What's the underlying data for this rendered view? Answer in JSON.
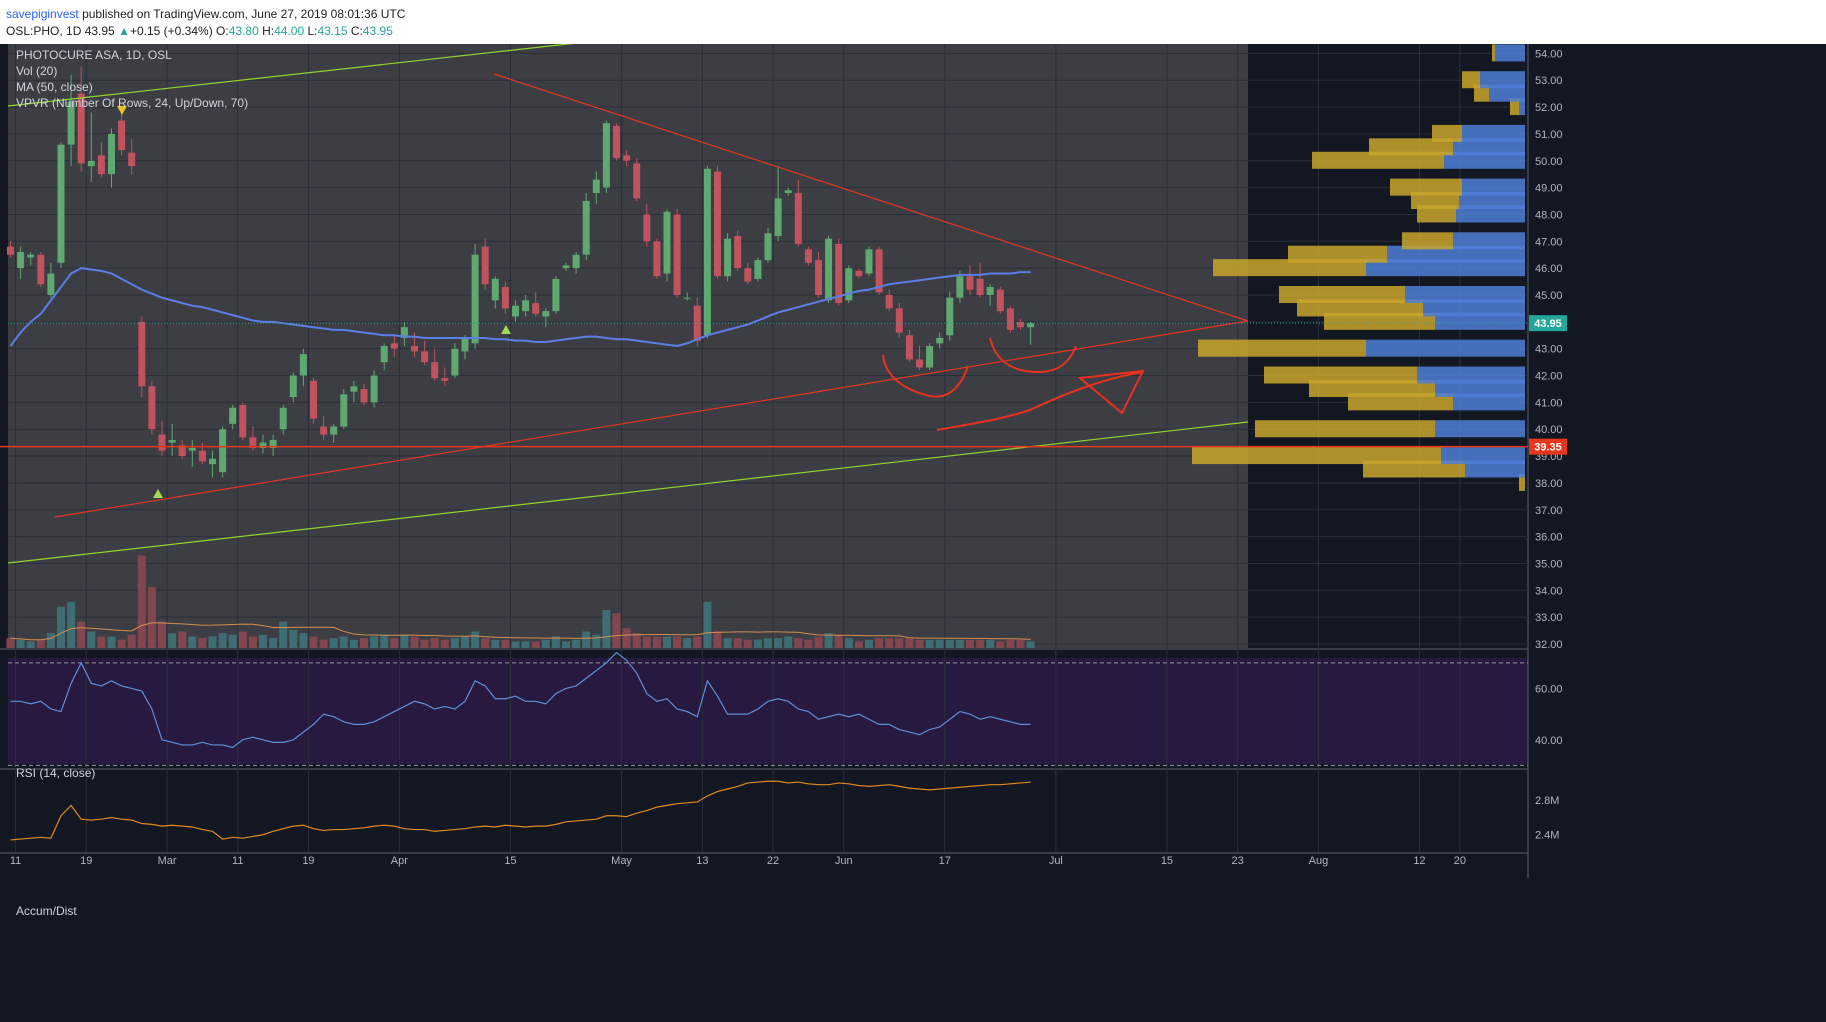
{
  "header": {
    "author": "savepiginvest",
    "published": "published on TradingView.com, June 27, 2019 08:01:36 UTC",
    "symbol": "OSL:PHO, 1D",
    "last": "43.95",
    "change": "+0.15 (+0.34%)",
    "o_label": "O:",
    "o_value": "43.80",
    "h_label": "H:",
    "h_value": "44.00",
    "l_label": "L:",
    "l_value": "43.15",
    "c_label": "C:",
    "c_value": "43.95",
    "up_arrow": "▲"
  },
  "legend": {
    "title": "PHOTOCURE ASA, 1D, OSL",
    "vol": "Vol (20)",
    "ma": "MA (50, close)",
    "vpvr": "VPVR (Number Of Rows, 24, Up/Down, 70)",
    "rsi": "RSI (14, close)",
    "accum": "Accum/Dist"
  },
  "colors": {
    "up": "#5fa870",
    "down": "#c0535e",
    "ma": "#5b7fe6",
    "trend_red": "#e8361d",
    "trend_green": "#8ed62c",
    "vpvr_up": "#4f7fd6",
    "vpvr_down": "#c9a62c",
    "rsi_line": "#5f8fd8",
    "ad_line": "#e08a1e",
    "price_label": "#26a69a",
    "support_label": "#e8361d"
  },
  "chart_data": [
    {
      "type": "candlestick",
      "title": "PHOTOCURE ASA, 1D, OSL",
      "x_tick_labels": [
        "11",
        "19",
        "Mar",
        "11",
        "19",
        "Apr",
        "15",
        "May",
        "13",
        "22",
        "Jun",
        "17",
        "Jul",
        "15",
        "23",
        "Aug",
        "12",
        "20"
      ],
      "y_tick_labels": [
        "54.00",
        "53.00",
        "52.00",
        "51.00",
        "50.00",
        "49.00",
        "48.00",
        "47.00",
        "46.00",
        "45.00",
        "44.00",
        "43.00",
        "42.00",
        "41.00",
        "40.00",
        "39.00",
        "38.00",
        "37.00",
        "36.00",
        "35.00",
        "34.00",
        "33.00",
        "32.00"
      ],
      "ylim": [
        31.85,
        54.35
      ],
      "last_price": "43.95",
      "support_level": "39.35",
      "ohlc": [
        [
          46.8,
          47.0,
          46.4,
          46.5
        ],
        [
          46.0,
          46.8,
          45.6,
          46.6
        ],
        [
          46.4,
          46.6,
          46.1,
          46.5
        ],
        [
          46.5,
          46.6,
          45.3,
          45.4
        ],
        [
          45.0,
          46.2,
          44.9,
          45.8
        ],
        [
          46.2,
          50.7,
          46.0,
          50.6
        ],
        [
          50.6,
          53.2,
          49.8,
          52.2
        ],
        [
          52.5,
          53.5,
          49.6,
          49.9
        ],
        [
          49.8,
          51.8,
          49.2,
          50.0
        ],
        [
          50.2,
          50.7,
          49.4,
          49.5
        ],
        [
          49.5,
          51.2,
          49.0,
          51.0
        ],
        [
          51.5,
          51.8,
          50.2,
          50.4
        ],
        [
          50.3,
          50.8,
          49.5,
          49.8
        ],
        [
          44.0,
          44.2,
          41.2,
          41.6
        ],
        [
          41.6,
          41.8,
          39.8,
          40.0
        ],
        [
          39.8,
          40.3,
          39.0,
          39.2
        ],
        [
          39.5,
          40.2,
          39.0,
          39.6
        ],
        [
          39.4,
          39.6,
          38.9,
          39.0
        ],
        [
          39.2,
          39.6,
          38.6,
          39.3
        ],
        [
          39.2,
          39.5,
          38.7,
          38.8
        ],
        [
          38.7,
          39.2,
          38.2,
          38.9
        ],
        [
          38.4,
          40.1,
          38.2,
          40.0
        ],
        [
          40.2,
          40.9,
          40.0,
          40.8
        ],
        [
          40.9,
          41.0,
          39.6,
          39.7
        ],
        [
          39.7,
          40.1,
          39.2,
          39.3
        ],
        [
          39.3,
          39.8,
          39.1,
          39.5
        ],
        [
          39.3,
          39.8,
          39.0,
          39.6
        ],
        [
          40.0,
          40.9,
          39.8,
          40.8
        ],
        [
          41.2,
          42.1,
          41.0,
          42.0
        ],
        [
          42.0,
          43.0,
          41.6,
          42.8
        ],
        [
          41.8,
          41.9,
          40.2,
          40.4
        ],
        [
          40.1,
          40.5,
          39.6,
          39.8
        ],
        [
          39.8,
          40.2,
          39.5,
          40.1
        ],
        [
          40.1,
          41.5,
          40.0,
          41.3
        ],
        [
          41.4,
          41.8,
          41.0,
          41.6
        ],
        [
          41.5,
          41.7,
          40.9,
          41.0
        ],
        [
          41.0,
          42.2,
          40.8,
          42.0
        ],
        [
          42.5,
          43.2,
          42.2,
          43.1
        ],
        [
          43.2,
          43.5,
          42.7,
          43.0
        ],
        [
          43.4,
          44.0,
          43.1,
          43.8
        ],
        [
          43.1,
          43.6,
          42.7,
          42.9
        ],
        [
          42.9,
          43.3,
          42.4,
          42.5
        ],
        [
          42.5,
          43.0,
          41.8,
          41.9
        ],
        [
          41.9,
          42.3,
          41.6,
          41.8
        ],
        [
          42.0,
          43.2,
          41.9,
          43.0
        ],
        [
          42.9,
          43.5,
          42.6,
          43.4
        ],
        [
          43.2,
          46.9,
          43.0,
          46.5
        ],
        [
          46.8,
          47.1,
          45.2,
          45.4
        ],
        [
          44.8,
          45.7,
          44.5,
          45.6
        ],
        [
          45.3,
          45.5,
          44.3,
          44.5
        ],
        [
          44.2,
          44.8,
          44.0,
          44.6
        ],
        [
          44.4,
          45.0,
          44.2,
          44.8
        ],
        [
          44.7,
          45.1,
          44.2,
          44.3
        ],
        [
          44.2,
          44.5,
          43.8,
          44.4
        ],
        [
          44.4,
          45.7,
          44.3,
          45.6
        ],
        [
          46.0,
          46.2,
          45.9,
          46.1
        ],
        [
          46.0,
          46.6,
          45.8,
          46.5
        ],
        [
          46.5,
          48.8,
          46.3,
          48.5
        ],
        [
          48.8,
          49.6,
          48.4,
          49.3
        ],
        [
          49.0,
          51.5,
          48.8,
          51.4
        ],
        [
          51.3,
          51.4,
          50.0,
          50.1
        ],
        [
          50.2,
          50.4,
          49.8,
          50.0
        ],
        [
          49.9,
          50.1,
          48.5,
          48.6
        ],
        [
          48.0,
          48.4,
          46.8,
          47.0
        ],
        [
          47.0,
          47.1,
          45.6,
          45.7
        ],
        [
          45.8,
          48.2,
          45.5,
          48.1
        ],
        [
          48.0,
          48.2,
          44.9,
          45.0
        ],
        [
          44.9,
          45.1,
          44.8,
          44.9
        ],
        [
          44.6,
          44.9,
          43.1,
          43.3
        ],
        [
          43.5,
          49.8,
          43.4,
          49.7
        ],
        [
          49.6,
          49.8,
          45.6,
          45.7
        ],
        [
          45.7,
          47.3,
          45.5,
          47.1
        ],
        [
          47.2,
          47.4,
          45.9,
          46.0
        ],
        [
          46.0,
          46.2,
          45.4,
          45.5
        ],
        [
          45.6,
          46.4,
          45.5,
          46.3
        ],
        [
          46.3,
          47.5,
          46.2,
          47.3
        ],
        [
          47.2,
          49.8,
          47.0,
          48.6
        ],
        [
          48.8,
          49.0,
          48.7,
          48.9
        ],
        [
          48.8,
          49.3,
          46.8,
          46.9
        ],
        [
          46.7,
          46.8,
          46.1,
          46.2
        ],
        [
          46.3,
          46.6,
          44.9,
          45.0
        ],
        [
          44.8,
          47.2,
          44.7,
          47.1
        ],
        [
          46.9,
          47.1,
          44.6,
          44.7
        ],
        [
          44.8,
          46.1,
          44.7,
          46.0
        ],
        [
          45.9,
          46.0,
          45.6,
          45.7
        ],
        [
          45.8,
          46.8,
          45.7,
          46.7
        ],
        [
          46.7,
          46.8,
          45.0,
          45.1
        ],
        [
          45.0,
          45.2,
          44.4,
          44.5
        ],
        [
          44.5,
          44.7,
          43.4,
          43.6
        ],
        [
          43.5,
          43.7,
          42.5,
          42.6
        ],
        [
          42.6,
          43.1,
          42.2,
          42.3
        ],
        [
          42.3,
          43.2,
          42.2,
          43.1
        ],
        [
          43.2,
          43.6,
          43.0,
          43.4
        ],
        [
          43.5,
          45.1,
          43.3,
          44.9
        ],
        [
          44.9,
          45.9,
          44.7,
          45.7
        ],
        [
          45.7,
          46.1,
          45.0,
          45.2
        ],
        [
          45.6,
          46.2,
          44.9,
          45.0
        ],
        [
          45.0,
          45.4,
          44.6,
          45.3
        ],
        [
          45.2,
          45.3,
          44.3,
          44.4
        ],
        [
          44.5,
          44.6,
          43.6,
          43.7
        ],
        [
          44.0,
          44.1,
          43.7,
          43.8
        ],
        [
          43.8,
          44.0,
          43.15,
          43.95
        ]
      ],
      "volume_scale": "relative",
      "volume": [
        0.06,
        0.05,
        0.04,
        0.05,
        0.09,
        0.25,
        0.28,
        0.16,
        0.1,
        0.07,
        0.07,
        0.05,
        0.08,
        0.56,
        0.37,
        0.16,
        0.09,
        0.1,
        0.07,
        0.06,
        0.07,
        0.09,
        0.08,
        0.1,
        0.07,
        0.08,
        0.06,
        0.16,
        0.11,
        0.09,
        0.07,
        0.05,
        0.06,
        0.07,
        0.05,
        0.06,
        0.07,
        0.08,
        0.06,
        0.08,
        0.07,
        0.05,
        0.06,
        0.05,
        0.06,
        0.07,
        0.1,
        0.06,
        0.05,
        0.05,
        0.04,
        0.04,
        0.04,
        0.05,
        0.07,
        0.04,
        0.05,
        0.1,
        0.08,
        0.23,
        0.21,
        0.12,
        0.09,
        0.07,
        0.07,
        0.07,
        0.07,
        0.06,
        0.07,
        0.28,
        0.1,
        0.06,
        0.06,
        0.05,
        0.05,
        0.06,
        0.06,
        0.07,
        0.06,
        0.05,
        0.07,
        0.09,
        0.08,
        0.06,
        0.04,
        0.05,
        0.06,
        0.06,
        0.06,
        0.06,
        0.05,
        0.05,
        0.05,
        0.05,
        0.05,
        0.05,
        0.05,
        0.05,
        0.04,
        0.05,
        0.05,
        0.04
      ],
      "ma50": [
        43.1,
        43.6,
        44.0,
        44.3,
        44.8,
        45.3,
        45.8,
        46.0,
        45.95,
        45.9,
        45.8,
        45.6,
        45.4,
        45.2,
        45.05,
        44.9,
        44.8,
        44.7,
        44.6,
        44.55,
        44.45,
        44.35,
        44.25,
        44.15,
        44.05,
        44.0,
        44.0,
        43.95,
        43.9,
        43.85,
        43.8,
        43.75,
        43.7,
        43.7,
        43.65,
        43.6,
        43.55,
        43.5,
        43.5,
        43.45,
        43.45,
        43.4,
        43.4,
        43.4,
        43.4,
        43.4,
        43.4,
        43.4,
        43.35,
        43.35,
        43.3,
        43.3,
        43.25,
        43.25,
        43.3,
        43.35,
        43.4,
        43.45,
        43.45,
        43.4,
        43.35,
        43.35,
        43.3,
        43.25,
        43.2,
        43.15,
        43.1,
        43.2,
        43.35,
        43.5,
        43.6,
        43.7,
        43.8,
        43.9,
        44.05,
        44.2,
        44.35,
        44.45,
        44.55,
        44.65,
        44.75,
        44.85,
        44.95,
        45.05,
        45.15,
        45.2,
        45.3,
        45.4,
        45.45,
        45.5,
        45.55,
        45.6,
        45.65,
        45.7,
        45.75,
        45.75,
        45.75,
        45.8,
        45.8,
        45.8,
        45.85,
        45.85
      ]
    },
    {
      "type": "histogram",
      "title": "VPVR (Number Of Rows, 24, Up/Down, 70)",
      "scale": "relative",
      "rows": [
        {
          "price": 38.0,
          "up": 0.0,
          "down": 0.02
        },
        {
          "price": 38.5,
          "up": 0.2,
          "down": 0.34
        },
        {
          "price": 39.0,
          "up": 0.28,
          "down": 0.83
        },
        {
          "price": 40.0,
          "up": 0.3,
          "down": 0.6
        },
        {
          "price": 41.0,
          "up": 0.24,
          "down": 0.35
        },
        {
          "price": 41.5,
          "up": 0.3,
          "down": 0.42
        },
        {
          "price": 42.0,
          "up": 0.36,
          "down": 0.51
        },
        {
          "price": 43.0,
          "up": 0.53,
          "down": 0.56
        },
        {
          "price": 44.0,
          "up": 0.3,
          "down": 0.37
        },
        {
          "price": 44.5,
          "up": 0.34,
          "down": 0.42
        },
        {
          "price": 45.0,
          "up": 0.4,
          "down": 0.42
        },
        {
          "price": 46.0,
          "up": 0.53,
          "down": 0.51
        },
        {
          "price": 46.5,
          "up": 0.46,
          "down": 0.33
        },
        {
          "price": 47.0,
          "up": 0.24,
          "down": 0.17
        },
        {
          "price": 48.0,
          "up": 0.23,
          "down": 0.13
        },
        {
          "price": 48.5,
          "up": 0.22,
          "down": 0.16
        },
        {
          "price": 49.0,
          "up": 0.21,
          "down": 0.24
        },
        {
          "price": 50.0,
          "up": 0.27,
          "down": 0.44
        },
        {
          "price": 50.5,
          "up": 0.24,
          "down": 0.28
        },
        {
          "price": 51.0,
          "up": 0.21,
          "down": 0.1
        },
        {
          "price": 52.0,
          "up": 0.02,
          "down": 0.03
        },
        {
          "price": 52.5,
          "up": 0.12,
          "down": 0.05
        },
        {
          "price": 53.0,
          "up": 0.15,
          "down": 0.06
        },
        {
          "price": 54.0,
          "up": 0.1,
          "down": 0.01
        }
      ]
    },
    {
      "type": "line",
      "title": "RSI (14, close)",
      "y_tick_labels": [
        "60.00",
        "40.00"
      ],
      "ylim": [
        29,
        75
      ],
      "bands": [
        70,
        30
      ],
      "values": [
        55,
        55,
        54,
        55,
        52,
        51,
        62,
        70,
        62,
        61,
        63,
        61,
        60,
        59,
        52,
        40,
        39,
        38,
        38,
        39,
        38,
        38,
        37,
        40,
        41,
        40,
        39,
        39,
        40,
        43,
        46,
        50,
        49,
        47,
        46,
        46,
        47,
        49,
        51,
        53,
        55,
        54,
        52,
        53,
        52,
        55,
        63,
        61,
        56,
        56,
        57,
        55,
        55,
        54,
        58,
        60,
        61,
        64,
        67,
        70,
        74,
        71,
        66,
        58,
        55,
        56,
        52,
        51,
        49,
        63,
        57,
        50,
        50,
        50,
        52,
        55,
        56,
        55,
        52,
        51,
        48,
        49,
        50,
        49,
        50,
        48,
        46,
        46,
        44,
        43,
        42,
        44,
        45,
        48,
        51,
        50,
        48,
        49,
        48,
        47,
        46,
        46
      ]
    },
    {
      "type": "line",
      "title": "Accum/Dist",
      "y_tick_labels": [
        "2.8M",
        "2.4M"
      ],
      "ylim": [
        2.2,
        3.15
      ],
      "values": [
        2.34,
        2.35,
        2.36,
        2.37,
        2.36,
        2.62,
        2.74,
        2.58,
        2.57,
        2.58,
        2.6,
        2.58,
        2.57,
        2.53,
        2.52,
        2.5,
        2.51,
        2.5,
        2.49,
        2.46,
        2.44,
        2.35,
        2.37,
        2.36,
        2.38,
        2.4,
        2.44,
        2.47,
        2.5,
        2.51,
        2.47,
        2.45,
        2.46,
        2.46,
        2.47,
        2.48,
        2.5,
        2.51,
        2.5,
        2.47,
        2.46,
        2.46,
        2.44,
        2.45,
        2.46,
        2.47,
        2.49,
        2.5,
        2.49,
        2.51,
        2.5,
        2.49,
        2.5,
        2.5,
        2.52,
        2.55,
        2.56,
        2.57,
        2.58,
        2.62,
        2.62,
        2.61,
        2.65,
        2.68,
        2.72,
        2.74,
        2.76,
        2.77,
        2.78,
        2.85,
        2.9,
        2.93,
        2.96,
        3.0,
        3.01,
        3.02,
        3.02,
        3.0,
        3.01,
        2.99,
        2.98,
        2.98,
        3.0,
        2.99,
        2.97,
        2.96,
        2.97,
        2.98,
        2.96,
        2.94,
        2.93,
        2.92,
        2.93,
        2.94,
        2.95,
        2.96,
        2.97,
        2.98,
        2.98,
        2.99,
        3.0,
        3.01
      ]
    }
  ]
}
